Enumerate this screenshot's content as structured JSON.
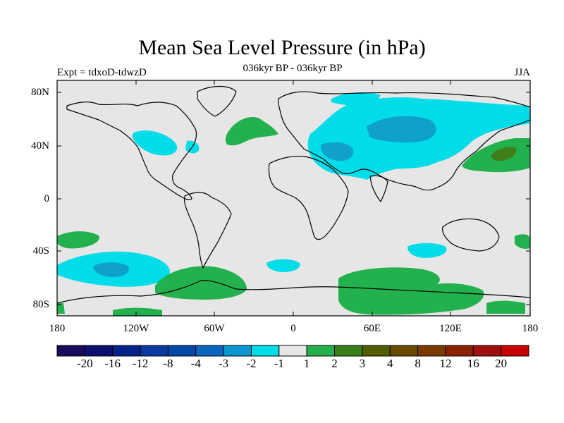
{
  "title": "Mean Sea Level Pressure (in hPa)",
  "subtitle": "036kyr BP - 036kyr BP",
  "experiment": "Expt = tdxoD-tdwzD",
  "season": "JJA",
  "colors": {
    "background": "#e6e6e6",
    "coastline": "#000000",
    "neg_strong": "#0fa1c9",
    "neg_weak": "#00dde8",
    "pos_weak": "#22b14c",
    "pos_strong": "#3f7f1a"
  },
  "lat_labels": [
    "80N",
    "40N",
    "0",
    "40S",
    "80S"
  ],
  "lon_labels": [
    "180",
    "120W",
    "60W",
    "0",
    "60E",
    "120E",
    "180"
  ],
  "colorbar": {
    "colors": [
      "#1a0a5a",
      "#0a0f70",
      "#04238a",
      "#0a3aa0",
      "#0048a8",
      "#0a66c0",
      "#0a96d0",
      "#00dde8",
      "#e6e6e6",
      "#22b14c",
      "#3a7f1a",
      "#535c00",
      "#6a4a00",
      "#7a3a00",
      "#8a2200",
      "#a01010",
      "#c80000"
    ],
    "labels": [
      "-20",
      "-16",
      "-12",
      "-8",
      "-4",
      "-3",
      "-2",
      "-1",
      "1",
      "2",
      "3",
      "4",
      "8",
      "12",
      "16",
      "20"
    ]
  }
}
